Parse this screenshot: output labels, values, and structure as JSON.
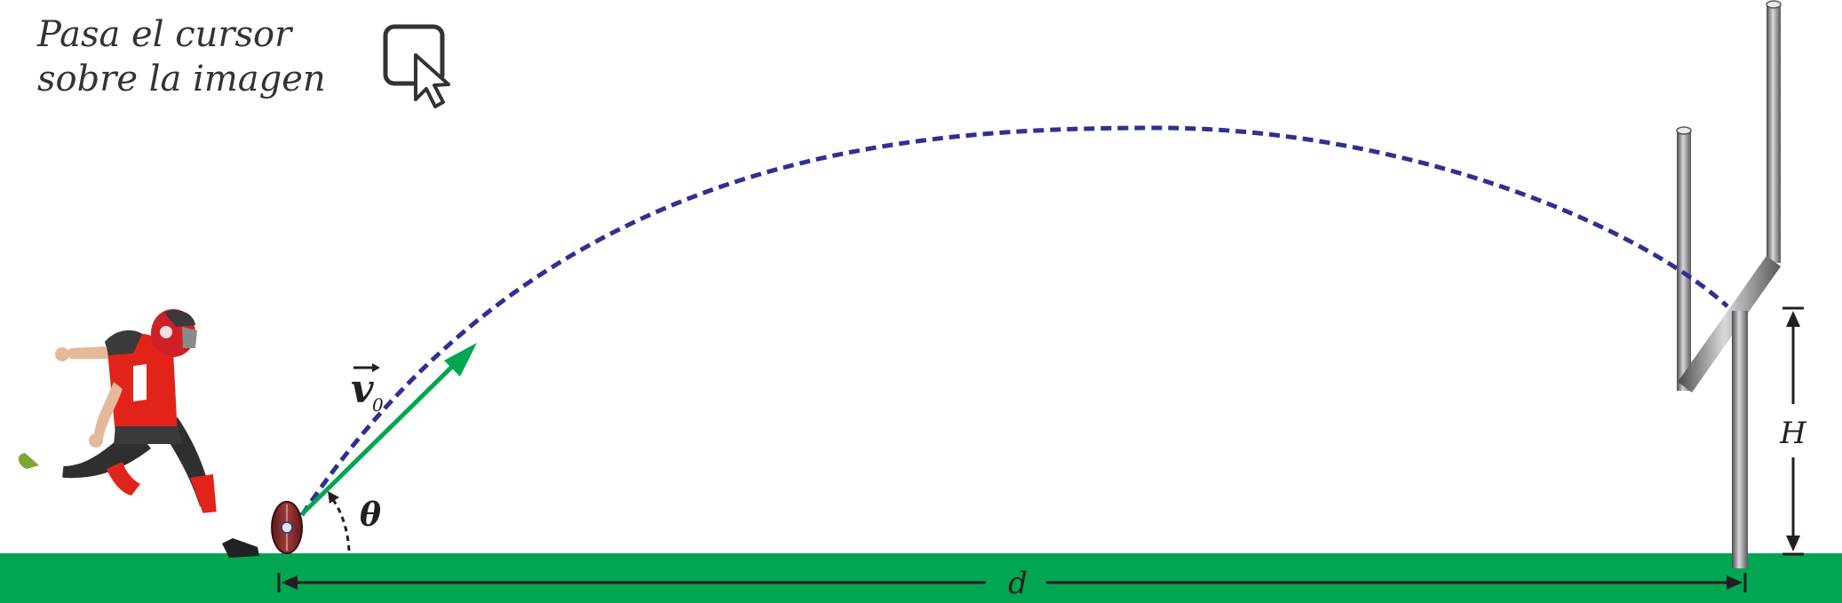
{
  "hint": {
    "line1": "Pasa el cursor",
    "line2": "sobre la imagen",
    "icon": "hover-cursor-icon"
  },
  "labels": {
    "velocity_symbol": "v",
    "velocity_subscript": "0",
    "angle": "θ",
    "height": "H",
    "distance": "d"
  },
  "colors": {
    "ground": "#00a651",
    "trajectory": "#2e3192",
    "velocity_vector": "#00a651",
    "dimension_lines": "#231f20",
    "goalpost": "#6d6e71",
    "hint_text": "#333333"
  },
  "icons": {
    "player": "kicker-player-icon",
    "ball": "football-icon",
    "goalpost": "goalpost-icon"
  }
}
